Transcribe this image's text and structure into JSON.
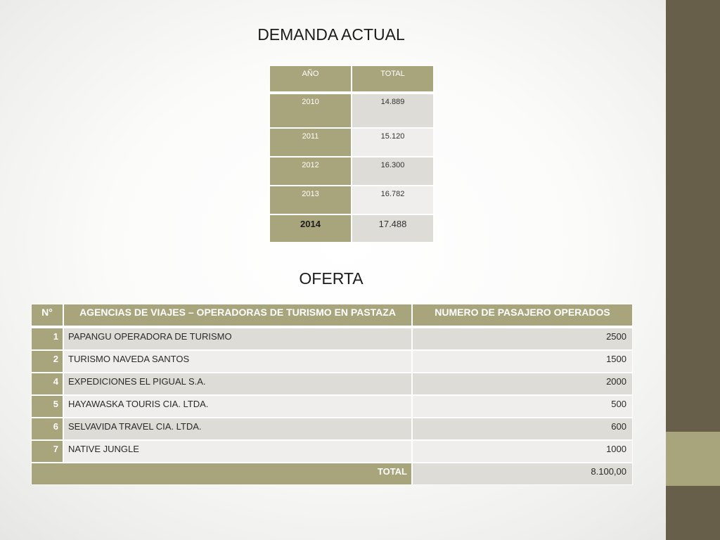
{
  "demanda": {
    "title": "DEMANDA ACTUAL",
    "headers": [
      "AÑO",
      "TOTAL"
    ],
    "rows": [
      {
        "year": "2010",
        "total": "14.889"
      },
      {
        "year": "2011",
        "total": "15.120"
      },
      {
        "year": "2012",
        "total": "16.300"
      },
      {
        "year": "2013",
        "total": "16.782"
      },
      {
        "year": "2014",
        "total": "17.488"
      }
    ]
  },
  "oferta": {
    "title": "OFERTA",
    "headers": [
      "N°",
      "AGENCIAS DE VIAJES – OPERADORAS DE TURISMO EN PASTAZA",
      "NUMERO DE PASAJERO OPERADOS"
    ],
    "rows": [
      {
        "n": "1",
        "name": "PAPANGU OPERADORA DE TURISMO",
        "count": "2500"
      },
      {
        "n": "2",
        "name": "TURISMO NAVEDA SANTOS",
        "count": "1500"
      },
      {
        "n": "4",
        "name": "EXPEDICIONES EL PIGUAL S.A.",
        "count": "2000"
      },
      {
        "n": "5",
        "name": "HAYAWASKA TOURIS CIA. LTDA.",
        "count": "500"
      },
      {
        "n": "6",
        "name": "SELVAVIDA TRAVEL CIA. LTDA.",
        "count": "600"
      },
      {
        "n": "7",
        "name": "NATIVE JUNGLE",
        "count": "1000"
      }
    ],
    "total_label": "TOTAL",
    "total_value": "8.100,00"
  },
  "colors": {
    "header_olive": "#a8a57c",
    "sidebar_dark": "#685f4a",
    "row_band": "#dddcd6",
    "row_light": "#efeeec"
  }
}
